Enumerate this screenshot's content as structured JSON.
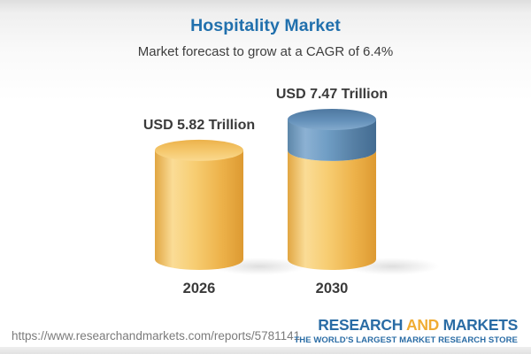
{
  "header": {
    "title": "Hospitality Market",
    "subtitle": "Market forecast to grow at a CAGR of 6.4%"
  },
  "chart_data": {
    "type": "bar",
    "style": "3d-cylinder",
    "title": "Hospitality Market",
    "subtitle": "Market forecast to grow at a CAGR of 6.4%",
    "unit": "USD Trillion",
    "cagr_percent": 6.4,
    "categories": [
      "2026",
      "2030"
    ],
    "values": [
      5.82,
      7.47
    ],
    "grid": false,
    "legend": false,
    "axes_hidden": true,
    "points": [
      {
        "category": "2026",
        "value": 5.82,
        "label": "USD 5.82 Trillion",
        "segments": [
          {
            "name": "base",
            "value": 5.82,
            "color": "#F2C261"
          }
        ]
      },
      {
        "category": "2030",
        "value": 7.47,
        "label": "USD 7.47 Trillion",
        "segments": [
          {
            "name": "base",
            "value": 5.82,
            "color": "#F2C261"
          },
          {
            "name": "growth",
            "value": 1.65,
            "color": "#6693BB"
          }
        ]
      }
    ],
    "colors": {
      "base": "#F2C261",
      "growth": "#6693BB",
      "label_text": "#3A3A3A"
    }
  },
  "footer": {
    "url": "https://www.researchandmarkets.com/reports/5781141",
    "logo": {
      "part1": "RESEARCH",
      "part2": "AND",
      "part3": "MARKETS",
      "tagline": "THE WORLD'S LARGEST MARKET RESEARCH STORE",
      "color_primary": "#2A6CA5",
      "color_accent": "#F0AC33"
    }
  },
  "palette": {
    "title_blue": "#2170AD",
    "subtitle_gray": "#3E3E3E",
    "background_top": "#DEDEDE"
  }
}
